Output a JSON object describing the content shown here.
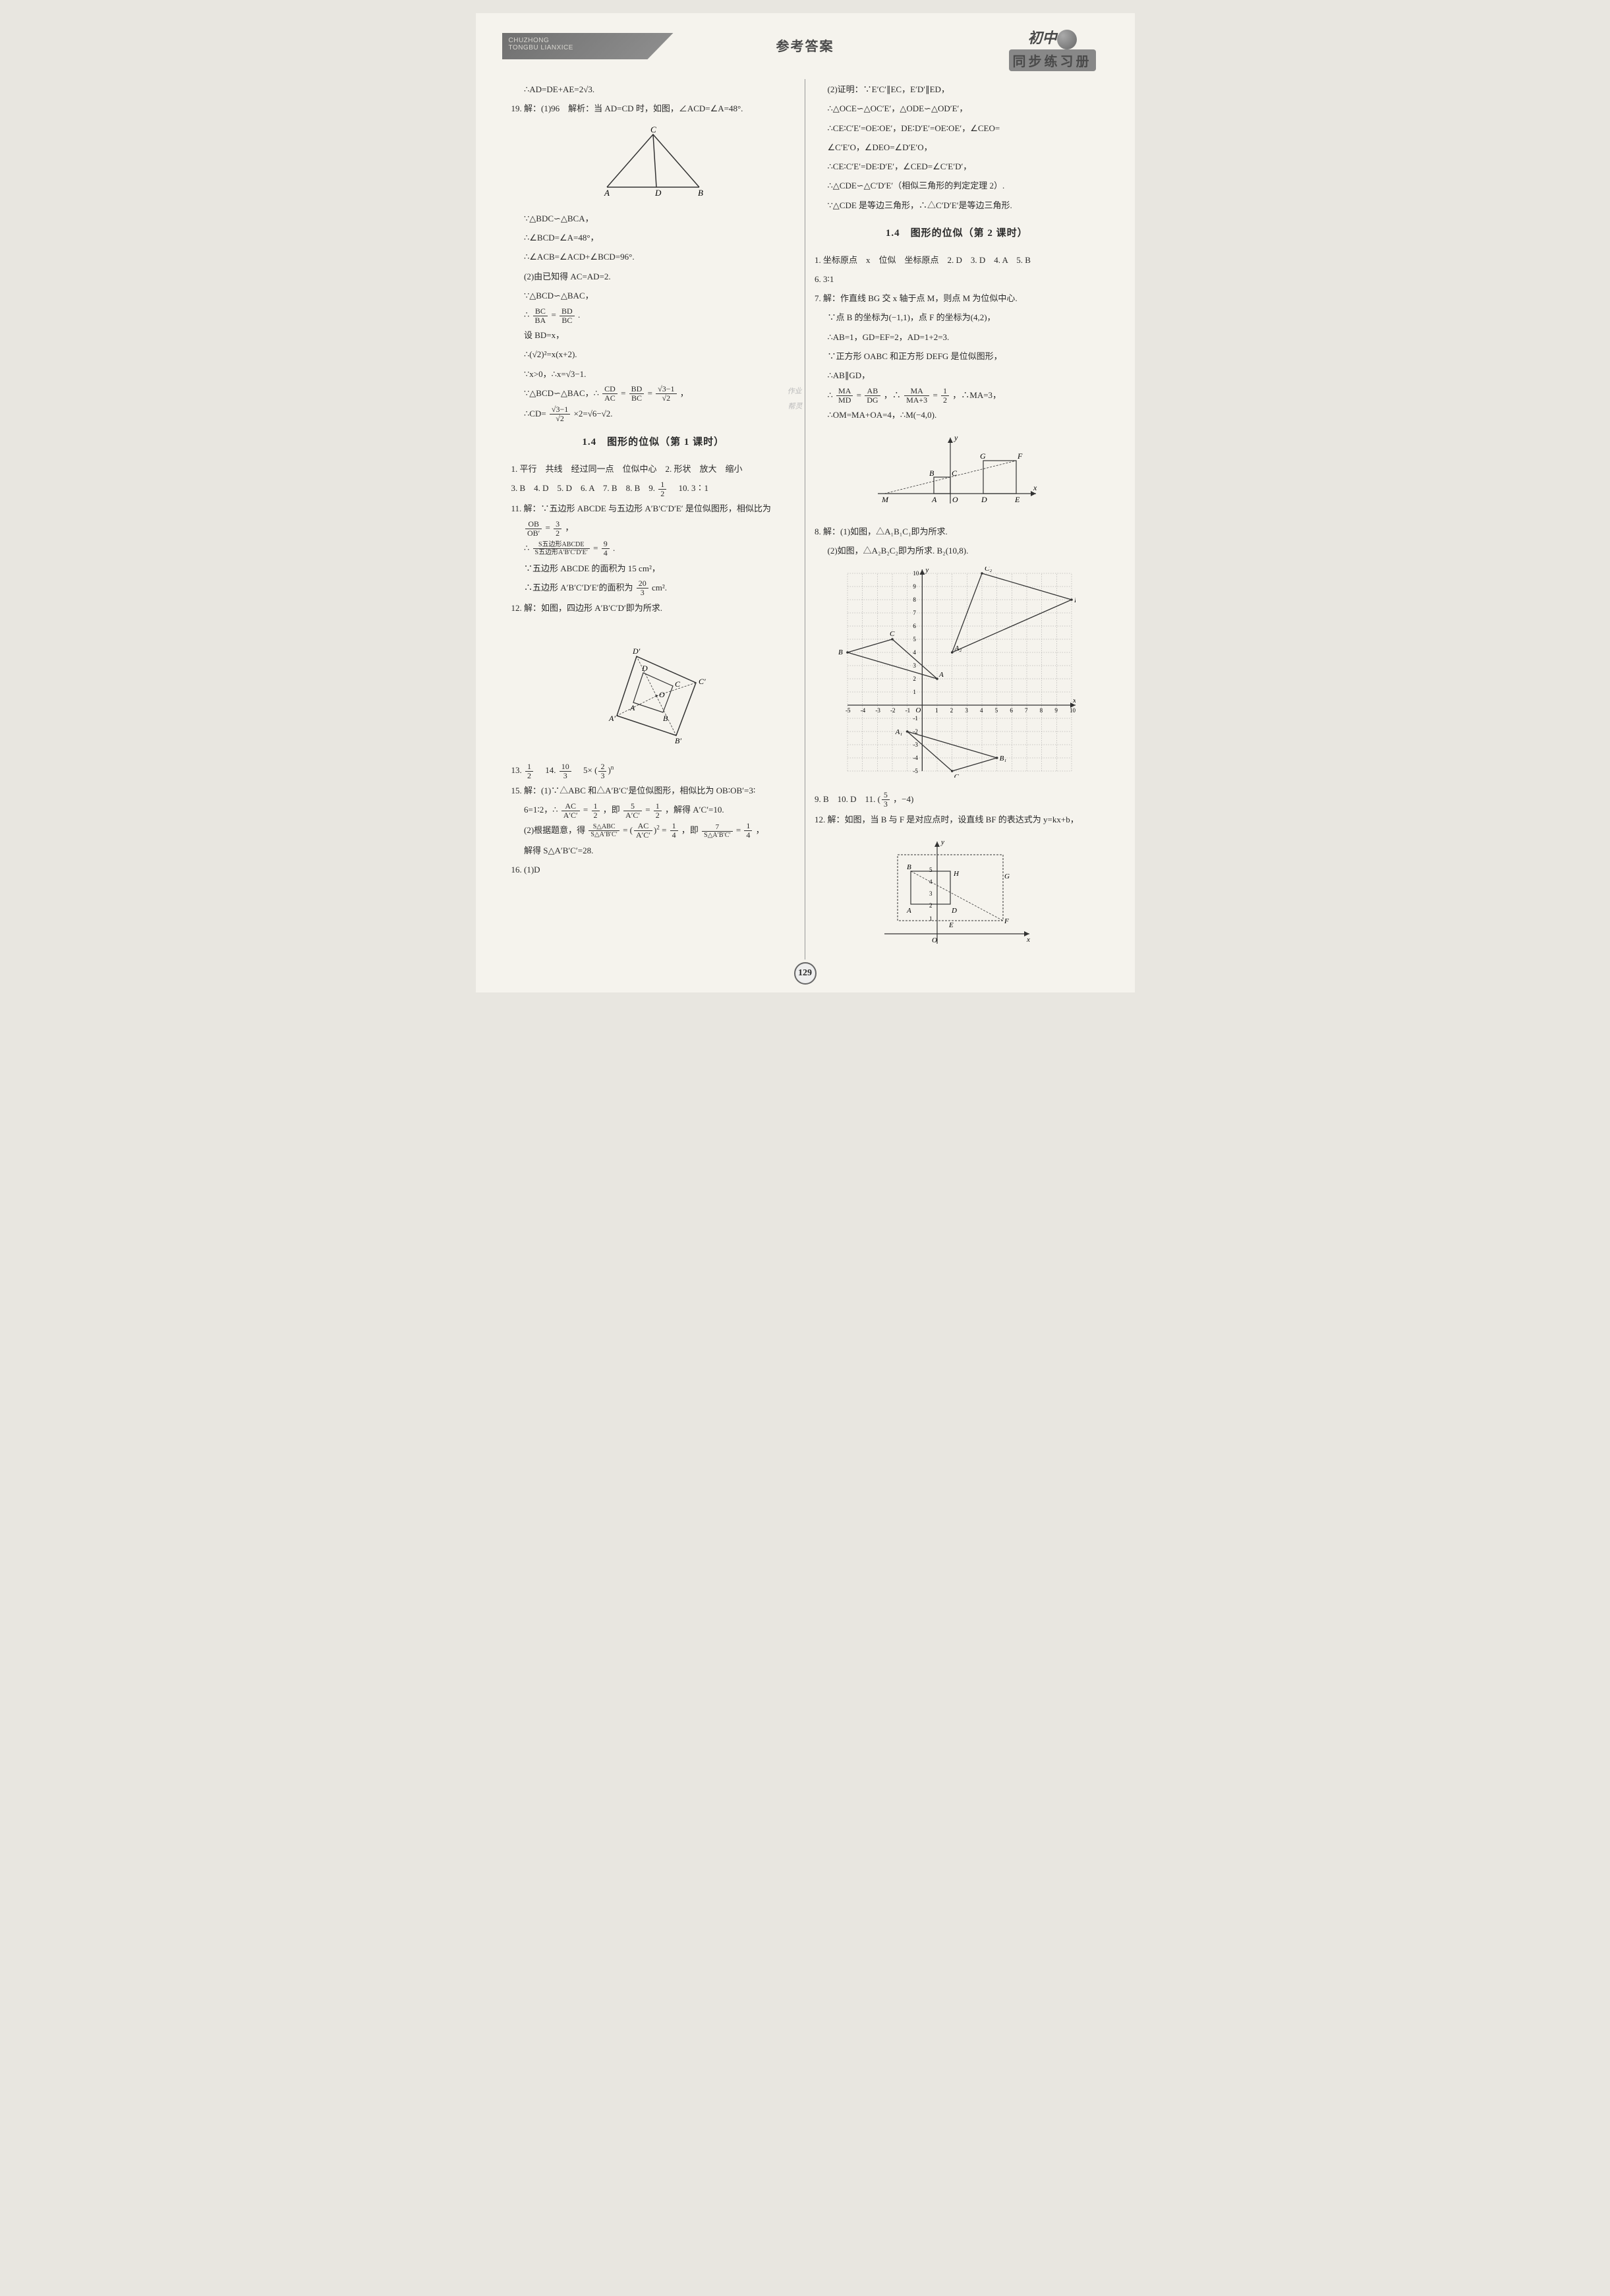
{
  "header": {
    "left_pinyin_1": "CHUZHONG",
    "left_pinyin_2": "TONGBU LIANXICE",
    "center_title": "参考答案",
    "logo_top": "初中",
    "logo_bottom": "同步练习册"
  },
  "watermarks": {
    "stamp1": "作业",
    "stamp2": "帮灵"
  },
  "left_col": {
    "l1": "∴AD=DE+AE=2√3.",
    "l2": "19. 解：(1)96　解析：当 AD=CD 时，如图，∠ACD=∠A=48°.",
    "fig1": {
      "labels": {
        "A": "A",
        "B": "B",
        "C": "C",
        "D": "D"
      },
      "stroke": "#333333",
      "bg": "#f5f3ed"
    },
    "l3": "∵△BDC∽△BCA，",
    "l4": "∴∠BCD=∠A=48°，",
    "l5": "∴∠ACB=∠ACD+∠BCD=96°.",
    "l6": "(2)由已知得 AC=AD=2.",
    "l7": "∵△BCD∽△BAC，",
    "l8_pre": "∴",
    "l8_n1": "BC",
    "l8_d1": "BA",
    "l8_mid": "=",
    "l8_n2": "BD",
    "l8_d2": "BC",
    "l8_post": ".",
    "l9": "设 BD=x，",
    "l10": "∴(√2)²=x(x+2).",
    "l11": "∵x>0，∴x=√3−1.",
    "l12_pre": "∵△BCD∽△BAC，∴",
    "l12_n1": "CD",
    "l12_d1": "AC",
    "l12_mid1": "=",
    "l12_n2": "BD",
    "l12_d2": "BC",
    "l12_mid2": "=",
    "l12_n3": "√3−1",
    "l12_d3": "√2",
    "l12_post": "，",
    "l13_pre": "∴CD=",
    "l13_n": "√3−1",
    "l13_d": "√2",
    "l13_post": "×2=√6−√2.",
    "sec1_title": "1.4　图形的位似（第 1 课时）",
    "l14": "1. 平行　共线　经过同一点　位似中心　2. 形状　放大　缩小",
    "l15_a": "3. B　4. D　5. D　6. A　7. B　8. B　9. ",
    "l15_n": "1",
    "l15_d": "2",
    "l15_b": "　10. 3∶1",
    "l16": "11. 解：∵五边形 ABCDE 与五边形 A′B′C′D′E′ 是位似图形，相似比为",
    "l17_n": "OB",
    "l17_d": "OB′",
    "l17_eq": "=",
    "l17_n2": "3",
    "l17_d2": "2",
    "l17_post": "，",
    "l18_pre": "∴",
    "l18_n": "S五边形ABCDE",
    "l18_d": "S五边形A′B′C′D′E′",
    "l18_eq": "=",
    "l18_n2": "9",
    "l18_d2": "4",
    "l18_post": ".",
    "l19": "∵五边形 ABCDE 的面积为 15 cm²，",
    "l20_pre": "∴五边形 A′B′C′D′E′的面积为",
    "l20_n": "20",
    "l20_d": "3",
    "l20_post": " cm².",
    "l21": "12. 解：如图，四边形 A′B′C′D′即为所求.",
    "fig2": {
      "labels": {
        "A": "A",
        "B": "B",
        "C": "C",
        "D": "D",
        "Ap": "A′",
        "Bp": "B′",
        "Cp": "C′",
        "Dp": "D′",
        "O": "O"
      },
      "stroke": "#333333",
      "dash": "4,3"
    },
    "l22_a": "13. ",
    "l22_n1": "1",
    "l22_d1": "2",
    "l22_b": "　14. ",
    "l22_n2": "10",
    "l22_d2": "3",
    "l22_c": "　5×",
    "l22_paren_n": "2",
    "l22_paren_d": "3",
    "l22_exp": "n",
    "l23": "15. 解：(1)∵△ABC 和△A′B′C′是位似图形，相似比为 OB∶OB′=3∶",
    "l24_a": "6=1∶2，∴",
    "l24_n1": "AC",
    "l24_d1": "A′C′",
    "l24_b": "=",
    "l24_n2": "1",
    "l24_d2": "2",
    "l24_c": "，即",
    "l24_n3": "5",
    "l24_d3": "A′C′",
    "l24_d": "=",
    "l24_n4": "1",
    "l24_d4": "2",
    "l24_e": "，解得 A′C′=10.",
    "l25_a": "(2)根据题意，得",
    "l25_n1": "S△ABC",
    "l25_d1": "S△A′B′C′",
    "l25_b": "=",
    "l25_paren_n": "AC",
    "l25_paren_d": "A′C′",
    "l25_exp": "2",
    "l25_c": "=",
    "l25_n2": "1",
    "l25_d2": "4",
    "l25_d": "，即",
    "l25_n3": "7",
    "l25_d3": "S△A′B′C′",
    "l25_e": "=",
    "l25_n4": "1",
    "l25_d4": "4",
    "l25_f": "，",
    "l26": "解得 S△A′B′C′=28.",
    "l27": "16. (1)D"
  },
  "right_col": {
    "r1": "(2)证明：∵E′C′∥EC，E′D′∥ED，",
    "r2": "∴△OCE∽△OC′E′，△ODE∽△OD′E′，",
    "r3": "∴CE∶C′E′=OE∶OE′，DE∶D′E′=OE∶OE′，∠CEO=",
    "r4": "∠C′E′O，∠DEO=∠D′E′O，",
    "r5": "∴CE∶C′E′=DE∶D′E′，∠CED=∠C′E′D′，",
    "r6": "∴△CDE∽△C′D′E′（相似三角形的判定定理 2）.",
    "r7": "∵△CDE 是等边三角形，∴△C′D′E′是等边三角形.",
    "sec2_title": "1.4　图形的位似（第 2 课时）",
    "r8": "1. 坐标原点　x　位似　坐标原点　2. D　3. D　4. A　5. B",
    "r9": "6. 3∶1",
    "r10": "7. 解：作直线 BG 交 x 轴于点 M，则点 M 为位似中心.",
    "r11": "∵点 B 的坐标为(−1,1)，点 F 的坐标为(4,2)，",
    "r12": "∴AB=1，GD=EF=2，AD=1+2=3.",
    "r13": "∵正方形 OABC 和正方形 DEFG 是位似图形，",
    "r14": "∴AB∥GD，",
    "r15_a": "∴",
    "r15_n1": "MA",
    "r15_d1": "MD",
    "r15_b": "=",
    "r15_n2": "AB",
    "r15_d2": "DG",
    "r15_c": "，∴",
    "r15_n3": "MA",
    "r15_d3": "MA+3",
    "r15_d": "=",
    "r15_n4": "1",
    "r15_d4": "2",
    "r15_e": "，∴MA=3，",
    "r16": "∴OM=MA+OA=4，∴M(−4,0).",
    "fig3": {
      "labels": {
        "M": "M",
        "A": "A",
        "O": "O",
        "D": "D",
        "E": "E",
        "B": "B",
        "C": "C",
        "G": "G",
        "F": "F",
        "x": "x",
        "y": "y"
      },
      "stroke": "#333333",
      "dash": "3,2"
    },
    "r17": "8. 解：(1)如图，△A₁B₁C₁即为所求.",
    "r18": "(2)如图，△A₂B₂C₂即为所求. B₂(10,8).",
    "fig4": {
      "xrange": [
        -5,
        10
      ],
      "yrange": [
        -5,
        10
      ],
      "grid_color": "#999999",
      "axis_color": "#333333",
      "A": [
        1,
        2
      ],
      "B": [
        -5,
        4
      ],
      "C": [
        -2,
        5
      ],
      "A1": [
        -1,
        -2
      ],
      "B1": [
        5,
        -4
      ],
      "C1": [
        2,
        -5
      ],
      "A2": [
        2,
        4
      ],
      "B2": [
        10,
        8
      ],
      "C2": [
        4,
        10
      ],
      "labels": {
        "A": "A",
        "B": "B",
        "C": "C",
        "A1": "A₁",
        "B1": "B₁",
        "C1": "C₁",
        "A2": "A₂",
        "B2": "B₂",
        "C2": "C₂",
        "O": "O",
        "x": "x",
        "y": "y"
      },
      "ticks": {
        "1": "1",
        "2": "2",
        "3": "3",
        "4": "4",
        "5": "5",
        "6": "6",
        "7": "7",
        "8": "8",
        "9": "9",
        "10": "10",
        "-1": "-1",
        "-2": "-2",
        "-3": "-3",
        "-4": "-4",
        "-5": "-5"
      }
    },
    "r19_a": "9. B　10. D　11. ",
    "r19_paren_n": "5",
    "r19_paren_d": "3",
    "r19_b": "，−4",
    "r20": "12. 解：如图，当 B 与 F 是对应点时，设直线 BF 的表达式为 y=kx+b，",
    "fig5": {
      "labels": {
        "O": "O",
        "A": "A",
        "B": "B",
        "D": "D",
        "E": "E",
        "F": "F",
        "G": "G",
        "H": "H",
        "x": "x",
        "y": "y"
      },
      "yticks": {
        "1": "1",
        "2": "2",
        "3": "3",
        "4": "4",
        "5": "5"
      },
      "stroke": "#333333",
      "dash": "3,2"
    }
  },
  "page_number": "129"
}
